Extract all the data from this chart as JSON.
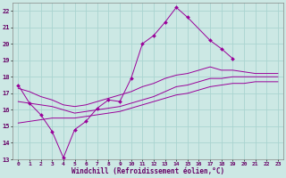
{
  "xlabel": "Windchill (Refroidissement éolien,°C)",
  "background_color": "#cce8e4",
  "grid_color": "#aad4d0",
  "line_color": "#990099",
  "xlim": [
    -0.5,
    23.5
  ],
  "ylim": [
    13,
    22.5
  ],
  "xticks": [
    0,
    1,
    2,
    3,
    4,
    5,
    6,
    7,
    8,
    9,
    10,
    11,
    12,
    13,
    14,
    15,
    16,
    17,
    18,
    19,
    20,
    21,
    22,
    23
  ],
  "yticks": [
    13,
    14,
    15,
    16,
    17,
    18,
    19,
    20,
    21,
    22
  ],
  "line1_x": [
    0,
    1,
    2,
    3,
    4,
    5,
    6,
    7,
    8,
    9,
    10,
    11,
    12,
    13,
    14,
    15,
    17,
    18,
    19
  ],
  "line1_y": [
    17.5,
    16.4,
    15.7,
    14.7,
    13.1,
    14.8,
    15.3,
    16.1,
    16.6,
    16.5,
    17.9,
    20.0,
    20.5,
    21.3,
    22.2,
    21.6,
    20.2,
    19.7,
    19.1
  ],
  "line2_x": [
    0,
    1,
    2,
    3,
    4,
    5,
    6,
    7,
    8,
    9,
    10,
    11,
    12,
    13,
    14,
    15,
    17,
    18,
    19,
    20,
    21,
    22,
    23
  ],
  "line2_y": [
    17.3,
    17.1,
    16.8,
    16.6,
    16.3,
    16.2,
    16.3,
    16.5,
    16.7,
    16.9,
    17.1,
    17.4,
    17.6,
    17.9,
    18.1,
    18.2,
    18.6,
    18.4,
    18.4,
    18.3,
    18.2,
    18.2,
    18.2
  ],
  "line3_x": [
    0,
    1,
    2,
    3,
    4,
    5,
    6,
    7,
    8,
    9,
    10,
    11,
    12,
    13,
    14,
    15,
    17,
    18,
    19,
    20,
    21,
    22,
    23
  ],
  "line3_y": [
    16.5,
    16.4,
    16.3,
    16.2,
    16.0,
    15.8,
    15.9,
    16.0,
    16.1,
    16.2,
    16.4,
    16.6,
    16.8,
    17.1,
    17.4,
    17.5,
    17.9,
    17.9,
    18.0,
    18.0,
    18.0,
    18.0,
    18.0
  ],
  "line4_x": [
    0,
    1,
    2,
    3,
    4,
    5,
    6,
    7,
    8,
    9,
    10,
    11,
    12,
    13,
    14,
    15,
    17,
    18,
    19,
    20,
    21,
    22,
    23
  ],
  "line4_y": [
    15.2,
    15.3,
    15.4,
    15.5,
    15.5,
    15.5,
    15.6,
    15.7,
    15.8,
    15.9,
    16.1,
    16.3,
    16.5,
    16.7,
    16.9,
    17.0,
    17.4,
    17.5,
    17.6,
    17.6,
    17.7,
    17.7,
    17.7
  ]
}
